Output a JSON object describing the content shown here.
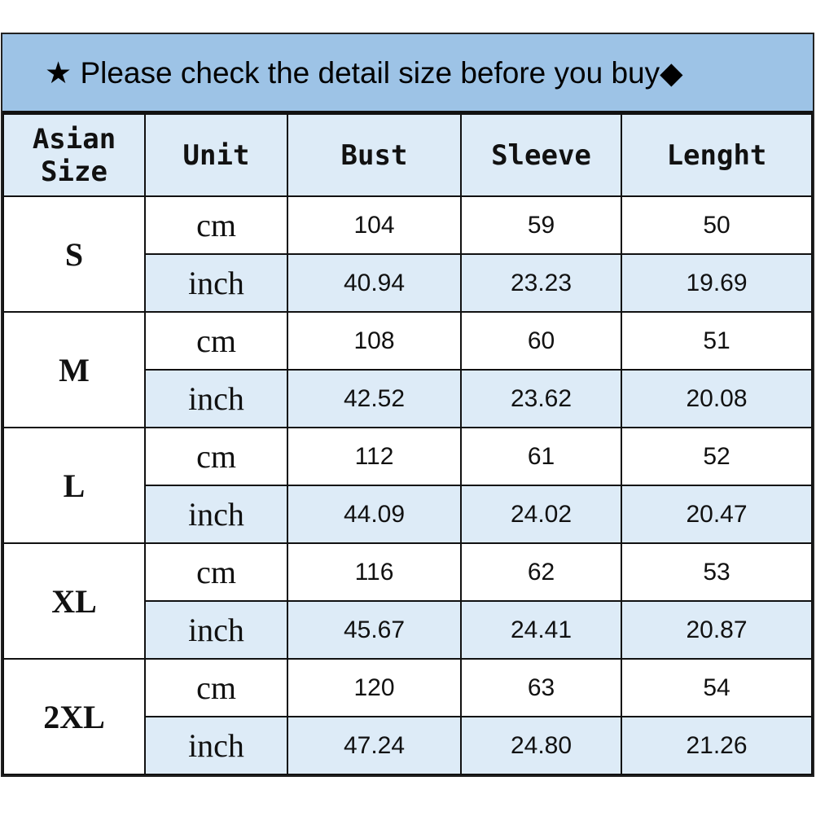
{
  "title": "★ Please check the detail size before you buy◆",
  "headers": [
    "Asian\nSize",
    "Unit",
    "Bust",
    "Sleeve",
    "Lenght"
  ],
  "rows": [
    {
      "size": "S",
      "cm": [
        "cm",
        "104",
        "59",
        "50"
      ],
      "inch": [
        "inch",
        "40.94",
        "23.23",
        "19.69"
      ]
    },
    {
      "size": "M",
      "cm": [
        "cm",
        "108",
        "60",
        "51"
      ],
      "inch": [
        "inch",
        "42.52",
        "23.62",
        "20.08"
      ]
    },
    {
      "size": "L",
      "cm": [
        "cm",
        "112",
        "61",
        "52"
      ],
      "inch": [
        "inch",
        "44.09",
        "24.02",
        "20.47"
      ]
    },
    {
      "size": "XL",
      "cm": [
        "cm",
        "116",
        "62",
        "53"
      ],
      "inch": [
        "inch",
        "45.67",
        "24.41",
        "20.87"
      ]
    },
    {
      "size": "2XL",
      "cm": [
        "cm",
        "120",
        "63",
        "54"
      ],
      "inch": [
        "inch",
        "47.24",
        "24.80",
        "21.26"
      ]
    }
  ],
  "colors": {
    "title_bg": "#9dc3e6",
    "alt_row_bg": "#ddebf7"
  }
}
